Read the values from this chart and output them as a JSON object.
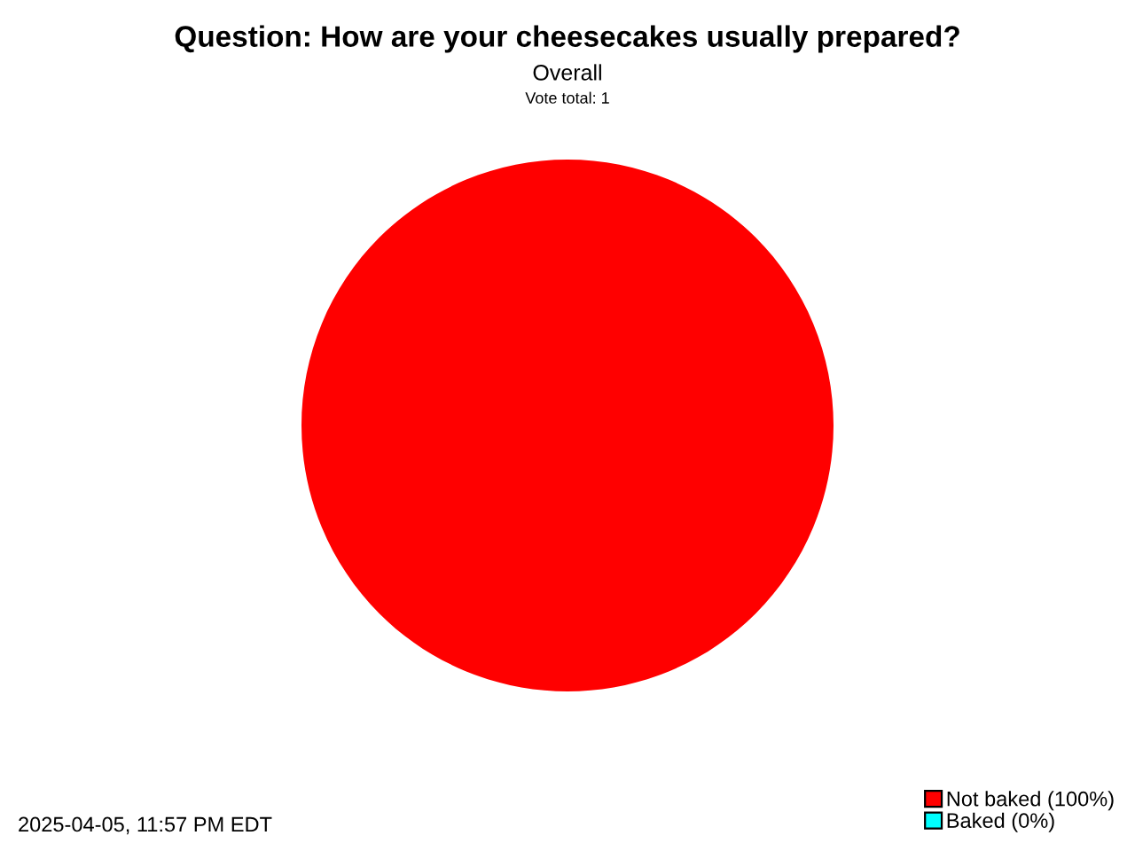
{
  "chart_data": {
    "type": "pie",
    "title": "Question: How are your cheesecakes usually prepared?",
    "subtitle": "Overall",
    "annotations": [
      "Vote total: 1",
      "2025-04-05, 11:57 PM EDT"
    ],
    "categories": [
      "Not baked (100%)",
      "Baked (0%)"
    ],
    "values": [
      100,
      0
    ],
    "colors": [
      "#ff0000",
      "#00ffff"
    ],
    "legend": "bottom right"
  }
}
